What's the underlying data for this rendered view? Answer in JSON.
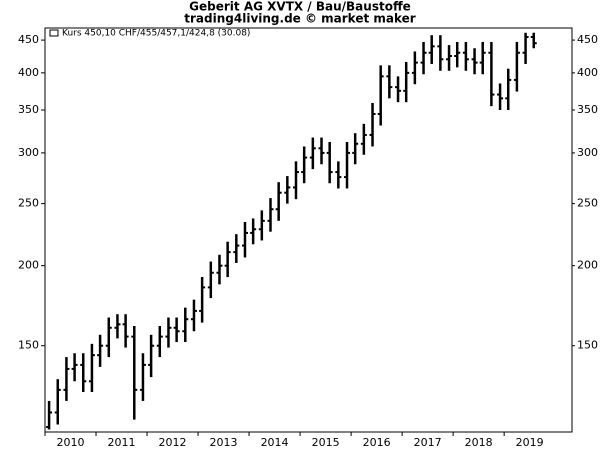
{
  "chart_data": {
    "type": "ohlc",
    "title": "Geberit AG XVTX / Bau/Baustoffe",
    "subtitle": "trading4living.de © market maker",
    "legend": "Kurs 450,10 CHF/455/457,1/424,8 (30.08)",
    "color": "#000000",
    "log_scale": true,
    "grid": false,
    "legend_position": "top-left",
    "x": [
      2010.08,
      2010.25,
      2010.42,
      2010.58,
      2010.75,
      2010.92,
      2011.08,
      2011.25,
      2011.42,
      2011.58,
      2011.75,
      2011.92,
      2012.08,
      2012.25,
      2012.42,
      2012.58,
      2012.75,
      2012.92,
      2013.08,
      2013.25,
      2013.42,
      2013.58,
      2013.75,
      2013.92,
      2014.08,
      2014.25,
      2014.42,
      2014.58,
      2014.75,
      2014.92,
      2015.08,
      2015.25,
      2015.42,
      2015.58,
      2015.75,
      2015.92,
      2016.08,
      2016.25,
      2016.42,
      2016.58,
      2016.75,
      2016.92,
      2017.08,
      2017.25,
      2017.42,
      2017.58,
      2017.75,
      2017.92,
      2018.08,
      2018.25,
      2018.42,
      2018.58,
      2018.75,
      2018.92,
      2019.08,
      2019.25,
      2019.42,
      2019.58
    ],
    "open": [
      112,
      118,
      128,
      138,
      140,
      132,
      145,
      150,
      160,
      162,
      155,
      128,
      140,
      150,
      155,
      160,
      158,
      165,
      170,
      185,
      195,
      200,
      210,
      215,
      225,
      228,
      235,
      245,
      260,
      265,
      280,
      295,
      305,
      300,
      280,
      275,
      300,
      310,
      320,
      345,
      395,
      380,
      375,
      400,
      415,
      430,
      440,
      420,
      425,
      430,
      420,
      415,
      430,
      370,
      365,
      390,
      430,
      455
    ],
    "high": [
      123,
      133,
      144,
      146,
      146,
      151,
      156,
      166,
      168,
      168,
      161,
      146,
      156,
      161,
      166,
      166,
      172,
      177,
      192,
      203,
      208,
      218,
      224,
      234,
      237,
      244,
      255,
      270,
      276,
      291,
      307,
      317,
      317,
      312,
      291,
      312,
      322,
      333,
      359,
      411,
      411,
      395,
      416,
      432,
      447,
      458,
      458,
      442,
      447,
      447,
      437,
      447,
      447,
      385,
      406,
      447,
      462,
      462
    ],
    "low": [
      111,
      113,
      123,
      132,
      127,
      127,
      139,
      144,
      154,
      149,
      115,
      123,
      134,
      144,
      149,
      152,
      152,
      158,
      163,
      178,
      187,
      192,
      202,
      206,
      216,
      219,
      226,
      235,
      250,
      254,
      269,
      283,
      288,
      269,
      264,
      264,
      288,
      298,
      307,
      331,
      365,
      360,
      360,
      384,
      398,
      413,
      403,
      403,
      408,
      403,
      398,
      398,
      355,
      350,
      350,
      374,
      413,
      437
    ],
    "close": [
      118,
      128,
      138,
      140,
      132,
      145,
      150,
      160,
      162,
      155,
      128,
      140,
      150,
      155,
      160,
      158,
      165,
      170,
      185,
      195,
      200,
      210,
      215,
      225,
      228,
      235,
      245,
      260,
      265,
      280,
      295,
      305,
      300,
      280,
      275,
      300,
      310,
      320,
      345,
      395,
      380,
      375,
      400,
      415,
      430,
      440,
      420,
      425,
      430,
      420,
      415,
      430,
      370,
      365,
      390,
      430,
      455,
      445
    ],
    "xlim": [
      2010,
      2020.33
    ],
    "xticks": [
      2010,
      2011,
      2012,
      2013,
      2014,
      2015,
      2016,
      2017,
      2018,
      2019
    ],
    "ylim": [
      110,
      470
    ],
    "yticks": [
      150,
      200,
      250,
      300,
      350,
      400,
      450
    ]
  }
}
